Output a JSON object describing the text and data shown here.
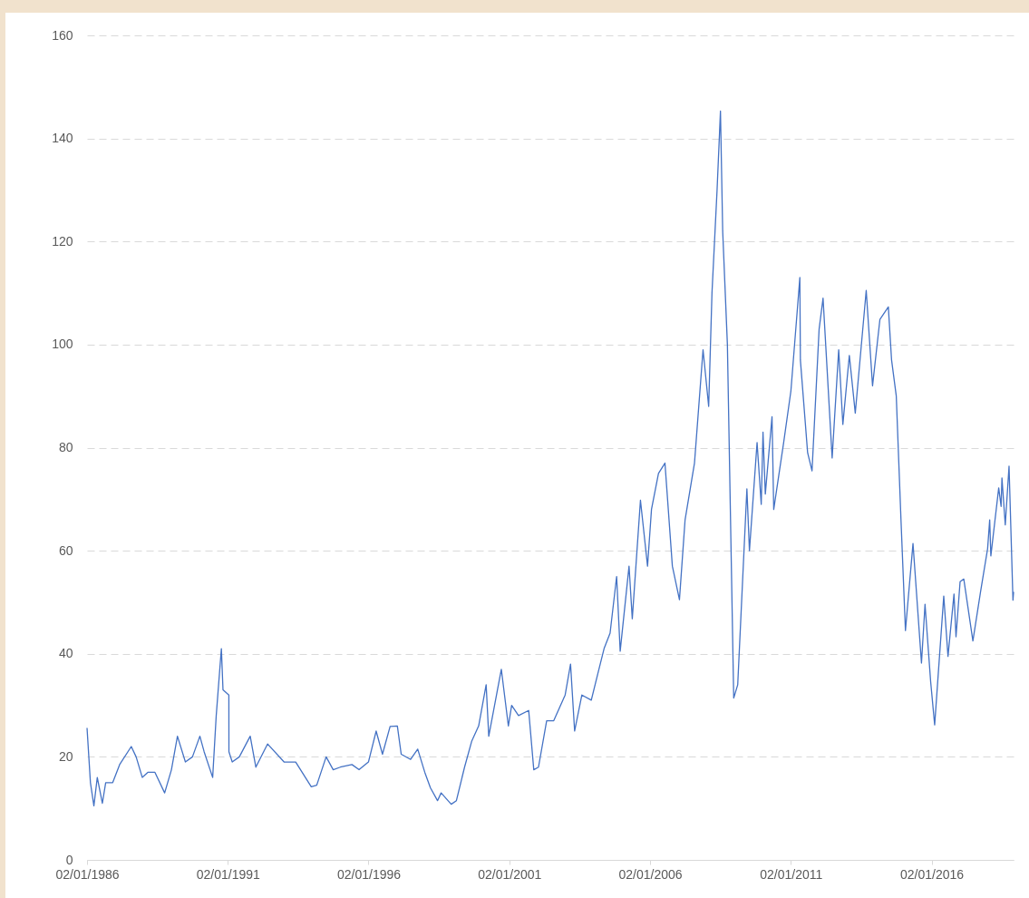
{
  "chart_data": {
    "type": "line",
    "color": "#4472c4",
    "grid": "y",
    "line_style": "solid",
    "marker": "none",
    "xlim": [
      "1986-01-02",
      "2018-12-01"
    ],
    "xticks": [
      {
        "value": "1986-01-02",
        "label": "02/01/1986"
      },
      {
        "value": "1991-01-02",
        "label": "02/01/1991"
      },
      {
        "value": "1996-01-02",
        "label": "02/01/1996"
      },
      {
        "value": "2001-01-02",
        "label": "02/01/2001"
      },
      {
        "value": "2006-01-02",
        "label": "02/01/2006"
      },
      {
        "value": "2011-01-02",
        "label": "02/01/2011"
      },
      {
        "value": "2016-01-02",
        "label": "02/01/2016"
      }
    ],
    "ylim": [
      0,
      160
    ],
    "yticks": [
      0,
      20,
      40,
      60,
      80,
      100,
      120,
      140,
      160
    ],
    "x": [
      "1986-01-02",
      "1986-02-15",
      "1986-04-01",
      "1986-05-15",
      "1986-07-20",
      "1986-09-01",
      "1986-12-01",
      "1987-03-01",
      "1987-07-30",
      "1987-10-01",
      "1987-12-20",
      "1988-03-01",
      "1988-06-01",
      "1988-10-05",
      "1989-01-01",
      "1989-03-20",
      "1989-07-01",
      "1989-10-01",
      "1990-01-05",
      "1990-03-01",
      "1990-06-20",
      "1990-08-05",
      "1990-10-11",
      "1990-11-01",
      "1991-01-16",
      "1991-01-17",
      "1991-03-01",
      "1991-06-01",
      "1991-10-20",
      "1992-01-01",
      "1992-06-01",
      "1993-01-01",
      "1993-06-01",
      "1993-12-20",
      "1994-03-01",
      "1994-07-01",
      "1994-10-01",
      "1995-01-01",
      "1995-06-01",
      "1995-09-01",
      "1996-01-01",
      "1996-04-10",
      "1996-07-01",
      "1996-10-08",
      "1997-01-10",
      "1997-03-01",
      "1997-07-01",
      "1997-10-01",
      "1998-01-01",
      "1998-03-15",
      "1998-06-15",
      "1998-08-01",
      "1998-12-10",
      "1999-02-15",
      "1999-06-01",
      "1999-09-01",
      "1999-12-01",
      "2000-03-07",
      "2000-04-10",
      "2000-09-20",
      "2000-12-20",
      "2001-02-01",
      "2001-05-01",
      "2001-09-10",
      "2001-11-15",
      "2002-01-15",
      "2002-05-01",
      "2002-08-01",
      "2002-12-27",
      "2003-03-07",
      "2003-04-29",
      "2003-08-01",
      "2003-12-01",
      "2004-03-01",
      "2004-05-15",
      "2004-08-01",
      "2004-10-25",
      "2004-12-10",
      "2005-04-04",
      "2005-05-16",
      "2005-08-30",
      "2005-11-30",
      "2006-01-20",
      "2006-04-21",
      "2006-07-14",
      "2006-10-18",
      "2007-01-18",
      "2007-04-01",
      "2007-08-01",
      "2007-11-20",
      "2008-02-01",
      "2008-03-15",
      "2008-05-20",
      "2008-07-03",
      "2008-08-01",
      "2008-10-01",
      "2008-12-22",
      "2009-02-12",
      "2009-06-11",
      "2009-07-14",
      "2009-10-21",
      "2009-12-14",
      "2010-01-06",
      "2010-02-05",
      "2010-05-03",
      "2010-05-25",
      "2010-10-01",
      "2011-01-03",
      "2011-04-29",
      "2011-05-06",
      "2011-08-08",
      "2011-10-04",
      "2012-01-04",
      "2012-02-24",
      "2012-06-21",
      "2012-09-14",
      "2012-11-07",
      "2013-01-30",
      "2013-04-17",
      "2013-09-06",
      "2013-11-27",
      "2014-03-03",
      "2014-06-20",
      "2014-08-01",
      "2014-10-01",
      "2014-12-01",
      "2015-01-28",
      "2015-05-06",
      "2015-08-24",
      "2015-10-09",
      "2015-12-21",
      "2016-02-11",
      "2016-06-08",
      "2016-08-02",
      "2016-10-19",
      "2016-11-14",
      "2017-01-06",
      "2017-02-23",
      "2017-06-21",
      "2017-09-28",
      "2017-12-29",
      "2018-01-25",
      "2018-02-09",
      "2018-05-22",
      "2018-06-22",
      "2018-07-03",
      "2018-08-15",
      "2018-10-03",
      "2018-11-23",
      "2018-12-01"
    ],
    "values": [
      25.6,
      15,
      10.5,
      16,
      11,
      15,
      15,
      18.5,
      22,
      20,
      16,
      17,
      17,
      13,
      17.5,
      24,
      19,
      20,
      24,
      21,
      16,
      28,
      41,
      33,
      32,
      21,
      19,
      20,
      24,
      18,
      22.5,
      19,
      19,
      14.2,
      14.5,
      20,
      17.5,
      18,
      18.5,
      17.5,
      19,
      25,
      20.5,
      25.9,
      26,
      20.5,
      19.5,
      21.5,
      17,
      14,
      11.5,
      13,
      10.8,
      11.5,
      18,
      23,
      26,
      34,
      24,
      37,
      26,
      30,
      28,
      29,
      17.5,
      18,
      27,
      27,
      32,
      38,
      25,
      32,
      31,
      36.5,
      41,
      44,
      55,
      40.5,
      57,
      46.8,
      69.8,
      57,
      68,
      75,
      77,
      57,
      50.5,
      66,
      77,
      99,
      88,
      110,
      130,
      145.3,
      122,
      100,
      31.4,
      34,
      72,
      60,
      81,
      69,
      83,
      71,
      86,
      68,
      81,
      91,
      113,
      97,
      79,
      75.5,
      103,
      109,
      78,
      99,
      84.5,
      97.9,
      86.7,
      110.5,
      92,
      104.9,
      107.3,
      97,
      90,
      66,
      44.5,
      61.4,
      38.2,
      49.6,
      34.6,
      26.2,
      51.2,
      39.5,
      51.6,
      43.3,
      54,
      54.5,
      42.5,
      52,
      60.4,
      66,
      59,
      72.2,
      68.6,
      74.1,
      65,
      76.4,
      50.4,
      52
    ]
  }
}
